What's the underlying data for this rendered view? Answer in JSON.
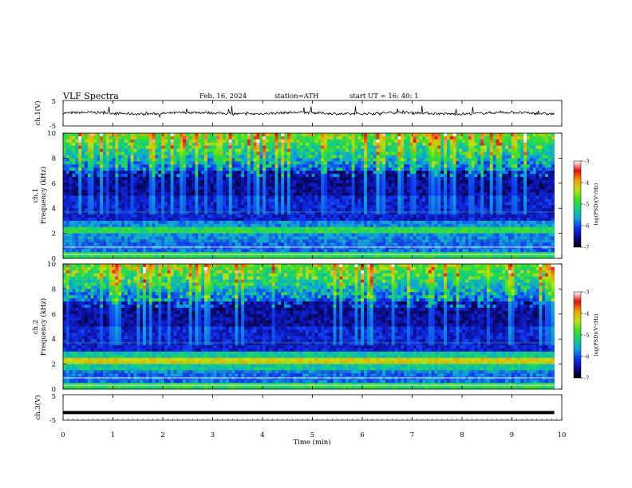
{
  "header": {
    "title": "VLF  Spectra",
    "date": "Feb. 16, 2024",
    "station": "station=ATH",
    "start_ut": "start  UT  =   16: 40: 1"
  },
  "colors": {
    "background": "#ffffff",
    "axis": "#000000",
    "colormap": [
      "#000000",
      "#0b0b90",
      "#1030f0",
      "#10a0e0",
      "#10d080",
      "#40e020",
      "#c0e010",
      "#f0a000",
      "#e01010",
      "#ffffff"
    ]
  },
  "chart_data": [
    {
      "type": "line",
      "name": "ch1-waveform",
      "ylabel": "ch.1(V)",
      "ylim": [
        -5,
        5
      ],
      "yticks": [
        "5",
        "-5"
      ],
      "xlim": [
        0,
        10
      ],
      "baseline": 0,
      "approx_amplitude": 0.8
    },
    {
      "type": "heatmap",
      "name": "ch1-spectrogram",
      "ylabel": "ch.1\nFrequency  (kHz)",
      "ylim": [
        0,
        10
      ],
      "yticks": [
        "0",
        "2",
        "4",
        "6",
        "8",
        "10"
      ],
      "xlim": [
        0,
        9.85
      ],
      "colorbar": {
        "label": "log(PSD)(V²/Hz)",
        "range": [
          -7,
          -3
        ],
        "ticks": [
          "-3",
          "-4",
          "-5",
          "-6",
          "-7"
        ]
      }
    },
    {
      "type": "heatmap",
      "name": "ch2-spectrogram",
      "ylabel": "ch.2\nFrequency  (kHz)",
      "ylim": [
        0,
        10
      ],
      "yticks": [
        "0",
        "2",
        "4",
        "6",
        "8",
        "10"
      ],
      "xlim": [
        0,
        9.85
      ],
      "colorbar": {
        "label": "log(PSD)(V²/Hz)",
        "range": [
          -7,
          -3
        ],
        "ticks": [
          "-3",
          "-4",
          "-5",
          "-6",
          "-7"
        ]
      }
    },
    {
      "type": "line",
      "name": "ch3-waveform",
      "ylabel": "ch.3(V)",
      "ylim": [
        -5,
        5
      ],
      "yticks": [
        "5",
        "-5"
      ],
      "xlim": [
        0,
        10
      ],
      "baseline": -2
    }
  ],
  "xaxis": {
    "label": "Time  (min)",
    "ticks": [
      "0",
      "1",
      "2",
      "3",
      "4",
      "5",
      "6",
      "7",
      "8",
      "9",
      "10"
    ]
  }
}
